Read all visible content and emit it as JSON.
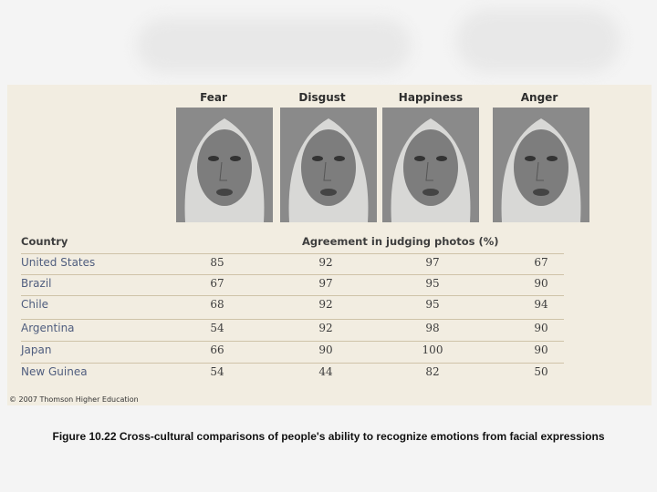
{
  "figure": {
    "emotions": [
      "Fear",
      "Disgust",
      "Happiness",
      "Anger"
    ],
    "country_header": "Country",
    "agreement_header": "Agreement in judging photos (%)",
    "rows": [
      {
        "country": "United States",
        "values": [
          85,
          92,
          97,
          67
        ]
      },
      {
        "country": "Brazil",
        "values": [
          67,
          97,
          95,
          90
        ]
      },
      {
        "country": "Chile",
        "values": [
          68,
          92,
          95,
          94
        ]
      },
      {
        "country": "Argentina",
        "values": [
          54,
          92,
          98,
          90
        ]
      },
      {
        "country": "Japan",
        "values": [
          66,
          90,
          100,
          90
        ]
      },
      {
        "country": "New Guinea",
        "values": [
          54,
          44,
          82,
          50
        ]
      }
    ],
    "copyright": "© 2007 Thomson Higher Education"
  },
  "caption": "Figure 10.22  Cross-cultural comparisons of people's ability to recognize emotions from facial expressions"
}
